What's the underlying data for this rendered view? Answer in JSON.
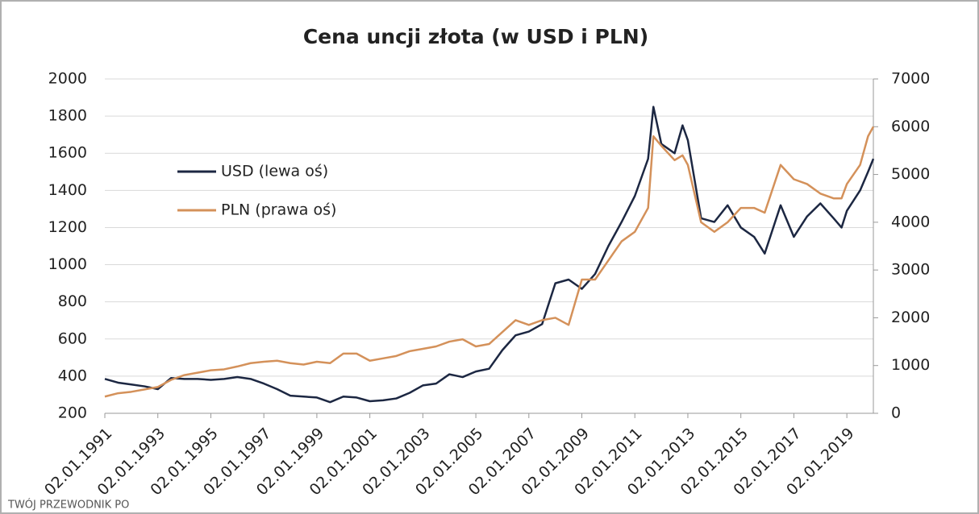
{
  "chart_data": {
    "type": "line",
    "title": "Cena uncji złota (w USD i PLN)",
    "x": [
      1991,
      1991.5,
      1992,
      1992.5,
      1993,
      1993.5,
      1994,
      1994.5,
      1995,
      1995.5,
      1996,
      1996.5,
      1997,
      1997.5,
      1998,
      1998.5,
      1999,
      1999.5,
      2000,
      2000.5,
      2001,
      2001.5,
      2002,
      2002.5,
      2003,
      2003.5,
      2004,
      2004.5,
      2005,
      2005.5,
      2006,
      2006.5,
      2007,
      2007.5,
      2008,
      2008.5,
      2009,
      2009.5,
      2010,
      2010.5,
      2011,
      2011.5,
      2011.7,
      2012,
      2012.5,
      2012.8,
      2013,
      2013.5,
      2014,
      2014.5,
      2015,
      2015.5,
      2015.9,
      2016.5,
      2017,
      2017.5,
      2018,
      2018.5,
      2018.8,
      2019,
      2019.5,
      2019.8,
      2020
    ],
    "series": [
      {
        "name": "USD (lewa oś)",
        "color": "#1c2742",
        "values": [
          385,
          365,
          355,
          345,
          330,
          390,
          385,
          385,
          380,
          385,
          395,
          385,
          360,
          330,
          295,
          290,
          285,
          260,
          290,
          285,
          265,
          270,
          280,
          310,
          350,
          360,
          410,
          395,
          425,
          440,
          540,
          620,
          640,
          680,
          900,
          920,
          870,
          950,
          1100,
          1230,
          1370,
          1570,
          1850,
          1650,
          1600,
          1750,
          1670,
          1250,
          1230,
          1320,
          1200,
          1150,
          1060,
          1320,
          1150,
          1260,
          1330,
          1250,
          1200,
          1290,
          1400,
          1500,
          1570
        ]
      },
      {
        "name": "PLN (prawa oś)",
        "color": "#d4915a",
        "axis": "y2",
        "values": [
          350,
          420,
          450,
          500,
          550,
          700,
          800,
          850,
          900,
          920,
          980,
          1050,
          1080,
          1100,
          1050,
          1020,
          1080,
          1050,
          1250,
          1250,
          1100,
          1150,
          1200,
          1300,
          1350,
          1400,
          1500,
          1550,
          1400,
          1450,
          1700,
          1950,
          1850,
          1950,
          2000,
          1850,
          2800,
          2800,
          3200,
          3600,
          3800,
          4300,
          5800,
          5600,
          5300,
          5400,
          5200,
          4000,
          3800,
          4000,
          4300,
          4300,
          4200,
          5200,
          4900,
          4800,
          4600,
          4500,
          4500,
          4800,
          5200,
          5800,
          6000
        ]
      }
    ],
    "xlim": [
      1991,
      2020
    ],
    "xticks": [
      {
        "value": 1991,
        "label": "02.01.1991"
      },
      {
        "value": 1993,
        "label": "02.01.1993"
      },
      {
        "value": 1995,
        "label": "02.01.1995"
      },
      {
        "value": 1997,
        "label": "02.01.1997"
      },
      {
        "value": 1999,
        "label": "02.01.1999"
      },
      {
        "value": 2001,
        "label": "02.01.2001"
      },
      {
        "value": 2003,
        "label": "02.01.2003"
      },
      {
        "value": 2005,
        "label": "02.01.2005"
      },
      {
        "value": 2007,
        "label": "02.01.2007"
      },
      {
        "value": 2009,
        "label": "02.01.2009"
      },
      {
        "value": 2011,
        "label": "02.01.2011"
      },
      {
        "value": 2013,
        "label": "02.01.2013"
      },
      {
        "value": 2015,
        "label": "02.01.2015"
      },
      {
        "value": 2017,
        "label": "02.01.2017"
      },
      {
        "value": 2019,
        "label": "02.01.2019"
      }
    ],
    "ylim": [
      200,
      2000
    ],
    "yticks": [
      200,
      400,
      600,
      800,
      1000,
      1200,
      1400,
      1600,
      1800,
      2000
    ],
    "y2lim": [
      0,
      7000
    ],
    "y2ticks": [
      0,
      1000,
      2000,
      3000,
      4000,
      5000,
      6000,
      7000
    ],
    "grid": true,
    "watermark": "TWÓJ PRZEWODNIK PO"
  }
}
